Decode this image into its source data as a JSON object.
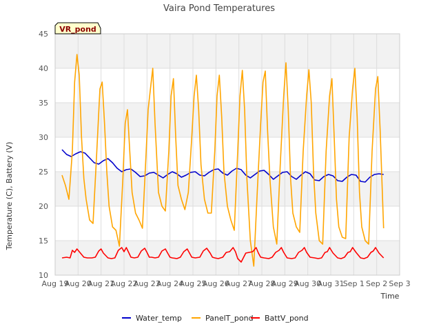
{
  "chart_data": {
    "type": "line",
    "title": "Vaira Pond Temperatures",
    "xlabel": "Time",
    "ylabel": "Temperature (C), Battery (V)",
    "site_label": "VR_pond",
    "ylim": [
      10,
      45
    ],
    "yticks": [
      10,
      15,
      20,
      25,
      30,
      35,
      40,
      45
    ],
    "xlim": [
      0,
      15
    ],
    "xtick_labels": [
      "Aug 19",
      "Aug 20",
      "Aug 21",
      "Aug 22",
      "Aug 23",
      "Aug 24",
      "Aug 25",
      "Aug 26",
      "Aug 27",
      "Aug 28",
      "Aug 29",
      "Aug 30",
      "Aug 31",
      "Sep 1",
      "Sep 2",
      "Sep 3"
    ],
    "grid": true,
    "legend_position": "bottom",
    "series": [
      {
        "name": "Water_temp",
        "color": "#0000cc",
        "x": [
          0.3,
          0.5,
          0.7,
          0.9,
          1.1,
          1.3,
          1.5,
          1.7,
          1.9,
          2.1,
          2.3,
          2.5,
          2.7,
          2.9,
          3.1,
          3.3,
          3.5,
          3.7,
          3.9,
          4.1,
          4.3,
          4.5,
          4.7,
          4.9,
          5.1,
          5.3,
          5.5,
          5.7,
          5.9,
          6.1,
          6.3,
          6.5,
          6.7,
          6.9,
          7.1,
          7.3,
          7.5,
          7.7,
          7.9,
          8.1,
          8.3,
          8.5,
          8.7,
          8.9,
          9.1,
          9.3,
          9.5,
          9.7,
          9.9,
          10.1,
          10.3,
          10.5,
          10.7,
          10.9,
          11.1,
          11.3,
          11.5,
          11.7,
          11.9,
          12.1,
          12.3,
          12.5,
          12.7,
          12.9,
          13.1,
          13.3,
          13.5,
          13.7,
          13.9,
          14.1,
          14.3
        ],
        "y": [
          28.2,
          27.5,
          27.2,
          27.6,
          27.9,
          27.7,
          27.0,
          26.3,
          26.1,
          26.6,
          26.9,
          26.3,
          25.5,
          25.0,
          25.3,
          25.4,
          24.9,
          24.3,
          24.4,
          24.8,
          24.9,
          24.5,
          24.1,
          24.6,
          25.0,
          24.7,
          24.2,
          24.5,
          24.9,
          25.0,
          24.5,
          24.4,
          24.9,
          25.3,
          25.4,
          24.8,
          24.5,
          25.1,
          25.5,
          25.3,
          24.5,
          24.1,
          24.6,
          25.1,
          25.2,
          24.6,
          23.9,
          24.4,
          24.9,
          25.0,
          24.3,
          23.9,
          24.5,
          25.0,
          24.7,
          23.8,
          23.7,
          24.3,
          24.6,
          24.4,
          23.7,
          23.6,
          24.2,
          24.6,
          24.5,
          23.6,
          23.5,
          24.2,
          24.6,
          24.7,
          24.6
        ]
      },
      {
        "name": "PanelT_pond",
        "color": "#ffa500",
        "x": [
          0.3,
          0.45,
          0.6,
          0.75,
          0.85,
          0.95,
          1.05,
          1.15,
          1.25,
          1.35,
          1.5,
          1.65,
          1.8,
          1.95,
          2.05,
          2.15,
          2.25,
          2.35,
          2.5,
          2.65,
          2.8,
          2.95,
          3.05,
          3.15,
          3.25,
          3.35,
          3.5,
          3.65,
          3.8,
          3.95,
          4.05,
          4.15,
          4.25,
          4.35,
          4.5,
          4.65,
          4.8,
          4.95,
          5.05,
          5.15,
          5.25,
          5.35,
          5.5,
          5.65,
          5.8,
          5.95,
          6.05,
          6.15,
          6.25,
          6.35,
          6.5,
          6.65,
          6.8,
          6.95,
          7.05,
          7.15,
          7.25,
          7.35,
          7.5,
          7.65,
          7.8,
          7.95,
          8.05,
          8.15,
          8.25,
          8.35,
          8.5,
          8.65,
          8.8,
          8.95,
          9.05,
          9.15,
          9.25,
          9.35,
          9.5,
          9.65,
          9.8,
          9.95,
          10.05,
          10.15,
          10.25,
          10.35,
          10.5,
          10.65,
          10.8,
          10.95,
          11.05,
          11.15,
          11.25,
          11.35,
          11.5,
          11.65,
          11.8,
          11.95,
          12.05,
          12.15,
          12.25,
          12.35,
          12.5,
          12.65,
          12.8,
          12.95,
          13.05,
          13.15,
          13.25,
          13.35,
          13.5,
          13.65,
          13.8,
          13.95,
          14.05,
          14.15,
          14.3
        ],
        "y": [
          24.5,
          23.0,
          21.0,
          28.0,
          38.0,
          42.0,
          39.0,
          30.0,
          24.0,
          21.0,
          18.0,
          17.5,
          27.0,
          37.0,
          38.0,
          32.0,
          25.0,
          20.0,
          17.0,
          16.5,
          14.2,
          24.0,
          32.0,
          34.0,
          28.0,
          22.0,
          19.0,
          18.0,
          16.8,
          27.0,
          34.0,
          37.0,
          40.0,
          32.0,
          22.0,
          20.0,
          19.3,
          28.0,
          36.0,
          38.5,
          30.0,
          23.0,
          21.0,
          19.5,
          22.0,
          30.0,
          36.0,
          39.0,
          34.0,
          26.0,
          21.0,
          19.0,
          19.0,
          28.0,
          36.0,
          39.0,
          33.0,
          25.0,
          20.0,
          18.0,
          16.5,
          28.0,
          36.0,
          39.7,
          34.0,
          24.0,
          15.0,
          11.3,
          22.0,
          32.0,
          38.0,
          39.6,
          31.0,
          24.0,
          17.0,
          14.5,
          26.0,
          36.0,
          40.8,
          34.0,
          24.0,
          19.0,
          17.0,
          16.2,
          28.0,
          36.0,
          39.8,
          35.0,
          25.0,
          19.0,
          15.0,
          14.5,
          28.0,
          36.0,
          38.5,
          30.0,
          21.0,
          17.0,
          15.5,
          15.3,
          30.0,
          37.0,
          40.0,
          33.0,
          22.0,
          17.0,
          15.0,
          14.5,
          28.0,
          37.0,
          38.8,
          31.0,
          16.8
        ]
      },
      {
        "name": "BattV_pond",
        "color": "#ff0000",
        "x": [
          0.3,
          0.5,
          0.65,
          0.75,
          0.85,
          0.95,
          1.1,
          1.25,
          1.4,
          1.6,
          1.75,
          1.9,
          2.0,
          2.1,
          2.3,
          2.45,
          2.6,
          2.75,
          2.9,
          3.0,
          3.1,
          3.2,
          3.3,
          3.45,
          3.6,
          3.75,
          3.9,
          4.0,
          4.1,
          4.2,
          4.35,
          4.5,
          4.65,
          4.8,
          4.9,
          5.0,
          5.1,
          5.3,
          5.45,
          5.6,
          5.75,
          5.85,
          5.95,
          6.1,
          6.3,
          6.45,
          6.6,
          6.75,
          6.85,
          6.95,
          7.1,
          7.3,
          7.45,
          7.6,
          7.75,
          7.85,
          7.95,
          8.1,
          8.3,
          8.45,
          8.6,
          8.75,
          8.85,
          8.95,
          9.1,
          9.3,
          9.45,
          9.6,
          9.75,
          9.85,
          9.95,
          10.1,
          10.3,
          10.45,
          10.6,
          10.75,
          10.85,
          10.95,
          11.1,
          11.3,
          11.45,
          11.6,
          11.75,
          11.85,
          11.95,
          12.1,
          12.3,
          12.45,
          12.6,
          12.75,
          12.85,
          12.95,
          13.1,
          13.3,
          13.45,
          13.6,
          13.75,
          13.85,
          13.95,
          14.1,
          14.3
        ],
        "y": [
          12.5,
          12.6,
          12.5,
          13.6,
          13.3,
          13.8,
          13.2,
          12.6,
          12.5,
          12.5,
          12.6,
          13.5,
          13.8,
          13.2,
          12.5,
          12.4,
          12.5,
          13.6,
          14.0,
          13.4,
          14.0,
          13.3,
          12.6,
          12.5,
          12.6,
          13.5,
          13.9,
          13.3,
          12.6,
          12.6,
          12.5,
          12.6,
          13.5,
          13.8,
          13.2,
          12.6,
          12.5,
          12.4,
          12.6,
          13.4,
          13.8,
          13.2,
          12.6,
          12.5,
          12.6,
          13.5,
          13.9,
          13.2,
          12.6,
          12.5,
          12.4,
          12.6,
          13.3,
          13.4,
          14.0,
          13.4,
          12.4,
          11.9,
          13.2,
          13.3,
          13.4,
          14.0,
          13.2,
          12.6,
          12.5,
          12.4,
          12.6,
          13.3,
          13.6,
          14.0,
          13.3,
          12.5,
          12.4,
          12.5,
          13.3,
          13.6,
          14.0,
          13.3,
          12.6,
          12.5,
          12.4,
          12.5,
          13.3,
          13.4,
          14.0,
          13.2,
          12.5,
          12.4,
          12.6,
          13.3,
          13.4,
          14.0,
          13.3,
          12.5,
          12.4,
          12.6,
          13.3,
          13.5,
          14.0,
          13.2,
          12.5
        ]
      }
    ]
  }
}
